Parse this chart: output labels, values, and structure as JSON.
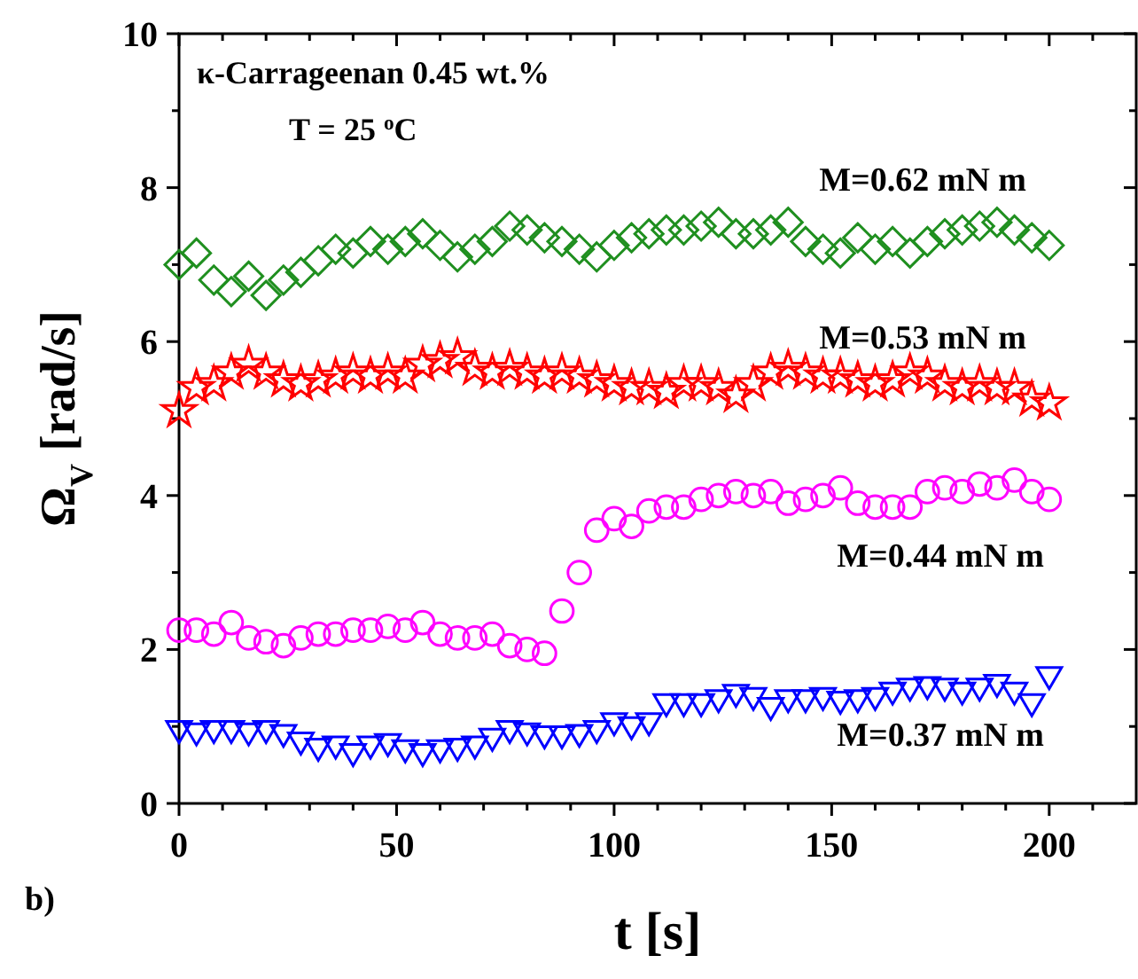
{
  "chart_data": {
    "type": "scatter",
    "xlabel": "t [s]",
    "ylabel": "Ω$_{V}$ [rad/s]",
    "x": [
      0,
      4,
      8,
      12,
      16,
      20,
      24,
      28,
      32,
      36,
      40,
      44,
      48,
      52,
      56,
      60,
      64,
      68,
      72,
      76,
      80,
      84,
      88,
      92,
      96,
      100,
      104,
      108,
      112,
      116,
      120,
      124,
      128,
      132,
      136,
      140,
      144,
      148,
      152,
      156,
      160,
      164,
      168,
      172,
      176,
      180,
      184,
      188,
      192,
      196,
      200
    ],
    "series": [
      {
        "name": "M=0.62 mN m",
        "color": "#1f8f1f",
        "marker": "diamond",
        "values": [
          7.0,
          7.15,
          6.8,
          6.65,
          6.85,
          6.6,
          6.8,
          6.9,
          7.05,
          7.2,
          7.15,
          7.3,
          7.2,
          7.3,
          7.4,
          7.25,
          7.1,
          7.2,
          7.3,
          7.5,
          7.45,
          7.35,
          7.3,
          7.2,
          7.1,
          7.25,
          7.35,
          7.4,
          7.45,
          7.45,
          7.5,
          7.55,
          7.4,
          7.4,
          7.45,
          7.55,
          7.3,
          7.2,
          7.15,
          7.35,
          7.2,
          7.3,
          7.15,
          7.3,
          7.4,
          7.45,
          7.5,
          7.55,
          7.45,
          7.35,
          7.25
        ]
      },
      {
        "name": "M=0.53 mN m",
        "color": "#ff0000",
        "marker": "star",
        "values": [
          5.1,
          5.4,
          5.45,
          5.6,
          5.7,
          5.6,
          5.5,
          5.45,
          5.5,
          5.55,
          5.6,
          5.55,
          5.6,
          5.55,
          5.7,
          5.75,
          5.8,
          5.65,
          5.6,
          5.65,
          5.6,
          5.55,
          5.6,
          5.55,
          5.5,
          5.45,
          5.4,
          5.4,
          5.35,
          5.45,
          5.45,
          5.4,
          5.3,
          5.45,
          5.6,
          5.65,
          5.6,
          5.55,
          5.55,
          5.5,
          5.45,
          5.5,
          5.6,
          5.55,
          5.45,
          5.4,
          5.45,
          5.4,
          5.4,
          5.25,
          5.2
        ]
      },
      {
        "name": "M=0.44 mN m",
        "color": "#ff00ff",
        "marker": "circle",
        "values": [
          2.25,
          2.25,
          2.2,
          2.35,
          2.15,
          2.1,
          2.05,
          2.15,
          2.2,
          2.2,
          2.25,
          2.25,
          2.3,
          2.25,
          2.35,
          2.2,
          2.15,
          2.15,
          2.2,
          2.05,
          2.0,
          1.95,
          2.5,
          3.0,
          3.55,
          3.7,
          3.6,
          3.8,
          3.85,
          3.85,
          3.95,
          4.0,
          4.05,
          4.0,
          4.05,
          3.9,
          3.95,
          4.0,
          4.1,
          3.9,
          3.85,
          3.85,
          3.85,
          4.05,
          4.1,
          4.05,
          4.15,
          4.1,
          4.2,
          4.05,
          3.95
        ]
      },
      {
        "name": "M=0.37 mN m",
        "color": "#0000ff",
        "marker": "triangle",
        "values": [
          0.95,
          0.92,
          0.95,
          0.95,
          0.92,
          0.95,
          0.9,
          0.8,
          0.72,
          0.75,
          0.65,
          0.75,
          0.78,
          0.7,
          0.65,
          0.7,
          0.72,
          0.75,
          0.85,
          0.95,
          0.92,
          0.88,
          0.88,
          0.9,
          0.95,
          1.05,
          1.0,
          1.05,
          1.3,
          1.3,
          1.3,
          1.35,
          1.42,
          1.38,
          1.25,
          1.35,
          1.35,
          1.38,
          1.33,
          1.35,
          1.38,
          1.45,
          1.5,
          1.52,
          1.5,
          1.45,
          1.5,
          1.55,
          1.45,
          1.3,
          1.65
        ]
      }
    ],
    "xlim": [
      0,
      220
    ],
    "xticks": [
      0,
      {
        "value": 10,
        "label": null
      },
      {
        "value": 20,
        "label": null
      },
      {
        "value": 30,
        "label": null
      },
      {
        "value": 40,
        "label": null
      },
      50,
      {
        "value": 60,
        "label": null
      },
      {
        "value": 70,
        "label": null
      },
      {
        "value": 80,
        "label": null
      },
      {
        "value": 90,
        "label": null
      },
      100,
      {
        "value": 110,
        "label": null
      },
      {
        "value": 120,
        "label": null
      },
      {
        "value": 130,
        "label": null
      },
      {
        "value": 140,
        "label": null
      },
      150,
      {
        "value": 160,
        "label": null
      },
      {
        "value": 170,
        "label": null
      },
      {
        "value": 180,
        "label": null
      },
      {
        "value": 190,
        "label": null
      },
      200,
      {
        "value": 210,
        "label": null
      }
    ],
    "ylim": [
      0,
      10
    ],
    "yticks": [
      0,
      {
        "value": 1,
        "label": null
      },
      2,
      {
        "value": 3,
        "label": null
      },
      4,
      {
        "value": 5,
        "label": null
      },
      6,
      {
        "value": 7,
        "label": null
      },
      8,
      {
        "value": 9,
        "label": null
      },
      10
    ],
    "annotations": [
      "κ-Carrageenan 0.45 wt.%",
      "T = 25 $^{o}$C",
      "b)"
    ]
  }
}
